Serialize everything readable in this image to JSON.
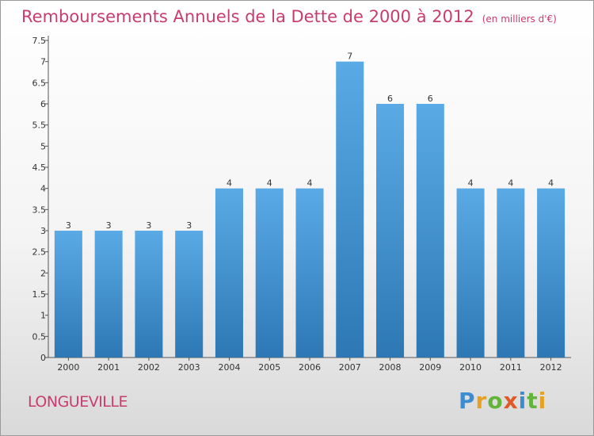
{
  "header": {
    "title": "Remboursements Annuels de la Dette de 2000 à 2012",
    "unit": "(en milliers d'€)"
  },
  "footer": {
    "commune": "LONGUEVILLE",
    "brand": "Proxiti"
  },
  "colors": {
    "title": "#c83c6e",
    "bar_top": "#5aaae6",
    "bar_bottom": "#2d78b4"
  },
  "chart_data": {
    "type": "bar",
    "title": "Remboursements Annuels de la Dette de 2000 à 2012",
    "unit": "(en milliers d'€)",
    "categories": [
      "2000",
      "2001",
      "2002",
      "2003",
      "2004",
      "2005",
      "2006",
      "2007",
      "2008",
      "2009",
      "2010",
      "2011",
      "2012"
    ],
    "values": [
      3,
      3,
      3,
      3,
      4,
      4,
      4,
      7,
      6,
      6,
      4,
      4,
      4
    ],
    "data_labels": [
      "3",
      "3",
      "3",
      "3",
      "4",
      "4",
      "4",
      "7",
      "6",
      "6",
      "4",
      "4",
      "4"
    ],
    "ylim": [
      0,
      7.5
    ],
    "yticks": [
      0,
      0.5,
      1,
      1.5,
      2,
      2.5,
      3,
      3.5,
      4,
      4.5,
      5,
      5.5,
      6,
      6.5,
      7,
      7.5
    ],
    "ytick_labels": [
      "0",
      "0.5",
      "1",
      "1.5",
      "2",
      "2.5",
      "3",
      "3.5",
      "4",
      "4.5",
      "5",
      "5.5",
      "6",
      "6.5",
      "7",
      "7.5"
    ],
    "grid": false,
    "legend": "none"
  }
}
